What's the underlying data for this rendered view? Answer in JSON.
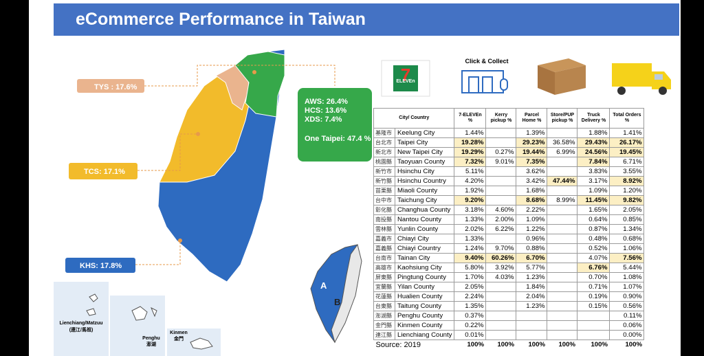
{
  "header": {
    "title": "eCommerce Performance in Taiwan"
  },
  "map": {
    "labels": [
      "TYS : 17.6%",
      "TCS: 17.1%",
      "KHS: 17.8%"
    ],
    "taipei_box": [
      "AWS: 26.4%",
      "HCS: 13.6%",
      "XDS: 7.4%",
      "One Taipei: 47.4 %"
    ],
    "insets": [
      {
        "name": "Lienchiang/Matzuu",
        "local": "(連江/馬祖)"
      },
      {
        "name": "Penghu",
        "local": "澎湖"
      },
      {
        "name": "Kinmen",
        "local": "金門"
      }
    ],
    "markers": [
      "A",
      "B"
    ]
  },
  "icons": {
    "seven_eleven": {
      "number": "7",
      "word": "ELEVEn"
    },
    "click_collect": "Click & Collect"
  },
  "table": {
    "columns": [
      "City/ Country",
      "7-ELEVEn %",
      "Kerry pickup %",
      "Parcel Home %",
      "Store/PUP pickup %",
      "Truck Delivery %",
      "Total Orders %"
    ],
    "rows": [
      [
        "基隆市",
        "Keelung City",
        "1.44%",
        null,
        "1.39%",
        null,
        "1.88%",
        "1.41%"
      ],
      [
        "台北市",
        "Taipei City",
        "19.28%",
        null,
        "29.23%",
        "36.58%",
        "29.43%",
        "26.17%"
      ],
      [
        "新北市",
        "New Taipei City",
        "19.29%",
        "0.27%",
        "19.44%",
        "6.99%",
        "24.56%",
        "19.45%"
      ],
      [
        "桃園縣",
        "Taoyuan County",
        "7.32%",
        "9.01%",
        "7.35%",
        null,
        "7.84%",
        "6.71%"
      ],
      [
        "新竹市",
        "Hsinchu City",
        "5.11%",
        null,
        "3.62%",
        null,
        "3.83%",
        "3.55%"
      ],
      [
        "新竹縣",
        "Hsinchu Country",
        "4.20%",
        null,
        "3.42%",
        "47.44%",
        "3.17%",
        "8.92%"
      ],
      [
        "苗栗縣",
        "Miaoli County",
        "1.92%",
        null,
        "1.68%",
        null,
        "1.09%",
        "1.20%"
      ],
      [
        "台中市",
        "Taichung City",
        "9.20%",
        null,
        "8.68%",
        "8.99%",
        "11.45%",
        "9.82%"
      ],
      [
        "彰化縣",
        "Changhua County",
        "3.18%",
        "4.60%",
        "2.22%",
        null,
        "1.65%",
        "2.05%"
      ],
      [
        "南投縣",
        "Nantou County",
        "1.33%",
        "2.00%",
        "1.09%",
        null,
        "0.64%",
        "0.85%"
      ],
      [
        "雲林縣",
        "Yunlin County",
        "2.02%",
        "6.22%",
        "1.22%",
        null,
        "0.87%",
        "1.34%"
      ],
      [
        "嘉義市",
        "Chiayi City",
        "1.33%",
        null,
        "0.96%",
        null,
        "0.48%",
        "0.68%"
      ],
      [
        "嘉義縣",
        "Chiayi Country",
        "1.24%",
        "9.70%",
        "0.88%",
        null,
        "0.52%",
        "1.06%"
      ],
      [
        "台南市",
        "Tainan City",
        "9.40%",
        "60.26%",
        "6.70%",
        null,
        "4.07%",
        "7.56%"
      ],
      [
        "高雄市",
        "Kaohsiung City",
        "5.80%",
        "3.92%",
        "5.77%",
        null,
        "6.76%",
        "5.44%"
      ],
      [
        "屏東縣",
        "Pingtung County",
        "1.70%",
        "4.03%",
        "1.23%",
        null,
        "0.70%",
        "1.08%"
      ],
      [
        "宜蘭縣",
        "Yilan County",
        "2.05%",
        null,
        "1.84%",
        null,
        "0.71%",
        "1.07%"
      ],
      [
        "花蓮縣",
        "Hualien County",
        "2.24%",
        null,
        "2.04%",
        null,
        "0.19%",
        "0.90%"
      ],
      [
        "台東縣",
        "Taitung County",
        "1.35%",
        null,
        "1.23%",
        null,
        "0.15%",
        "0.56%"
      ],
      [
        "澎湖縣",
        "Penghu County",
        "0.37%",
        null,
        null,
        null,
        null,
        "0.11%"
      ],
      [
        "金門縣",
        "Kinmen County",
        "0.22%",
        null,
        null,
        null,
        null,
        "0.06%"
      ],
      [
        "連江縣",
        "Lienchiang County",
        "0.01%",
        null,
        null,
        null,
        null,
        "0.00%"
      ]
    ],
    "footer": [
      "Source: 2019",
      "100%",
      "100%",
      "100%",
      "100%",
      "100%",
      "100%"
    ]
  }
}
